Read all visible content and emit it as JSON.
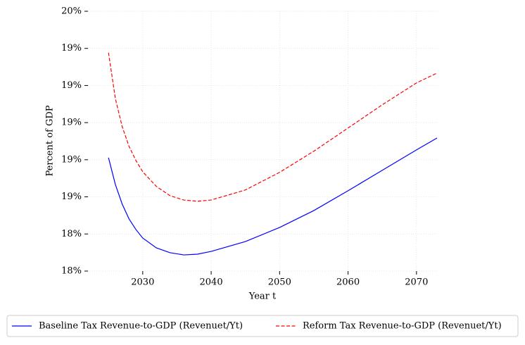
{
  "chart_data": {
    "type": "line",
    "x_label": "Year t",
    "y_label": "Percent of GDP",
    "x": [
      2025,
      2026,
      2027,
      2028,
      2029,
      2030,
      2032,
      2034,
      2036,
      2038,
      2040,
      2045,
      2050,
      2055,
      2060,
      2065,
      2070,
      2073
    ],
    "series": [
      {
        "name": "Baseline Tax Revenue-to-GDP (Revenuet/Yt)",
        "color": "#0000ff",
        "dash": "solid",
        "values": [
          18.811,
          18.667,
          18.561,
          18.481,
          18.424,
          18.378,
          18.325,
          18.299,
          18.287,
          18.291,
          18.306,
          18.359,
          18.435,
          18.526,
          18.633,
          18.743,
          18.853,
          18.917
        ]
      },
      {
        "name": "Reform Tax Revenue-to-GDP (Revenuet/Yt)",
        "color": "#ff0000",
        "dash": "dashed",
        "values": [
          19.377,
          19.13,
          18.978,
          18.872,
          18.796,
          18.735,
          18.656,
          18.606,
          18.583,
          18.576,
          18.583,
          18.637,
          18.732,
          18.846,
          18.971,
          19.096,
          19.214,
          19.267
        ]
      }
    ],
    "xlim": [
      2022,
      2073
    ],
    "xticks": [
      2030,
      2040,
      2050,
      2060,
      2070
    ],
    "ylim": [
      18.2,
      19.6
    ],
    "yticks": [
      {
        "value": 18.2,
        "label": "18%"
      },
      {
        "value": 18.4,
        "label": "18%"
      },
      {
        "value": 18.6,
        "label": "19%"
      },
      {
        "value": 18.8,
        "label": "19%"
      },
      {
        "value": 19.0,
        "label": "19%"
      },
      {
        "value": 19.2,
        "label": "19%"
      },
      {
        "value": 19.4,
        "label": "19%"
      },
      {
        "value": 19.6,
        "label": "20%"
      }
    ],
    "grid": true,
    "legend": "bottom"
  }
}
